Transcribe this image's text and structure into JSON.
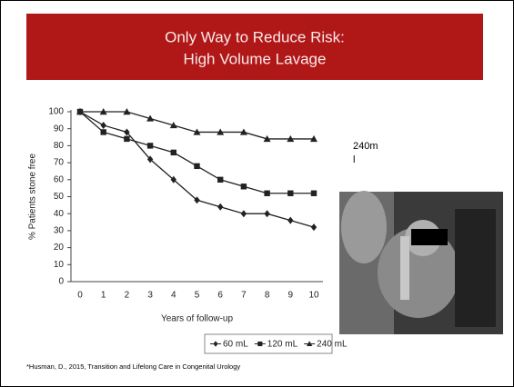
{
  "slide": {
    "title_lines": [
      "Only Way to Reduce Risk:",
      "High Volume Lavage"
    ],
    "annotation_lines": [
      "240m",
      "l"
    ],
    "footnote": "*Husman, D., 2015, Transition and Lifelong Care in Congenital Urology"
  },
  "chart_data": {
    "type": "line",
    "x_label": "Years of follow-up",
    "y_label": "% Patients stone free",
    "x": [
      0,
      1,
      2,
      3,
      4,
      5,
      6,
      7,
      8,
      9,
      10
    ],
    "xlim": [
      0,
      10
    ],
    "xticks": [
      0,
      1,
      2,
      3,
      4,
      5,
      6,
      7,
      8,
      9,
      10
    ],
    "ylim": [
      0,
      100
    ],
    "yticks": [
      0,
      10,
      20,
      30,
      40,
      50,
      60,
      70,
      80,
      90,
      100
    ],
    "grid": false,
    "series": [
      {
        "name": "60 mL",
        "color": "#222222",
        "marker": "diamond",
        "values": [
          100,
          92,
          88,
          72,
          60,
          48,
          44,
          40,
          40,
          36,
          32
        ]
      },
      {
        "name": "120 mL",
        "color": "#222222",
        "marker": "square",
        "values": [
          100,
          88,
          84,
          80,
          76,
          68,
          60,
          56,
          52,
          52,
          52
        ]
      },
      {
        "name": "240 mL",
        "color": "#222222",
        "marker": "triangle",
        "values": [
          100,
          100,
          100,
          96,
          92,
          88,
          88,
          88,
          84,
          84,
          84
        ]
      }
    ]
  }
}
